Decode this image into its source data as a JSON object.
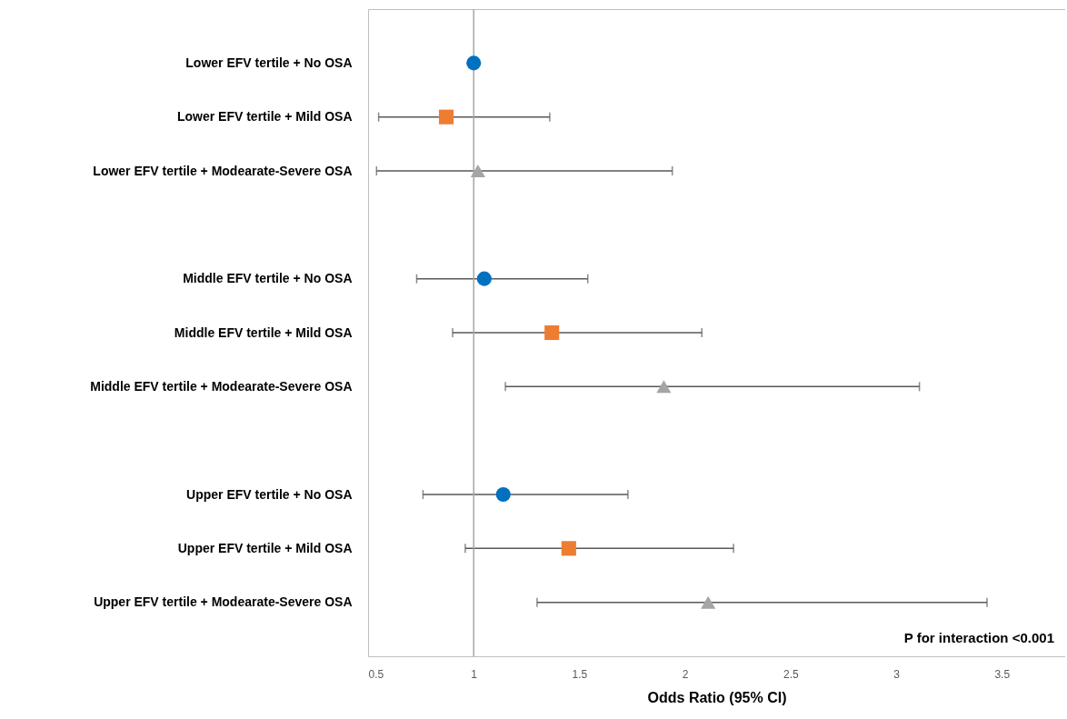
{
  "chart_data": {
    "type": "scatter",
    "orientation": "horizontal",
    "xlabel": "Odds Ratio (95% CI)",
    "categories": [
      "Lower EFV tertile + No OSA",
      "Lower EFV tertile + Mild OSA",
      "Lower EFV tertile + Modearate-Severe OSA",
      null,
      "Middle EFV tertile + No OSA",
      "Middle EFV tertile + Mild OSA",
      "Middle EFV tertile + Modearate-Severe OSA",
      null,
      "Upper EFV tertile + No OSA",
      "Upper EFV tertile + Mild OSA",
      "Upper EFV tertile + Modearate-Severe OSA"
    ],
    "series": [
      {
        "color": "#0070c0",
        "marker": "circle",
        "values": [
          1.0,
          null,
          null,
          null,
          1.05,
          null,
          null,
          null,
          1.14,
          null,
          null
        ],
        "errors": [
          null,
          null,
          null,
          null,
          [
            0.73,
            1.54
          ],
          null,
          null,
          null,
          [
            0.76,
            1.73
          ],
          null,
          null
        ]
      },
      {
        "color": "#ed7d31",
        "marker": "square",
        "values": [
          null,
          0.87,
          null,
          null,
          null,
          1.37,
          null,
          null,
          null,
          1.45,
          null
        ],
        "errors": [
          null,
          [
            0.55,
            1.36
          ],
          null,
          null,
          null,
          [
            0.9,
            2.08
          ],
          null,
          null,
          null,
          [
            0.96,
            2.23
          ],
          null
        ]
      },
      {
        "color": "#a5a5a5",
        "marker": "triangle",
        "values": [
          null,
          null,
          1.02,
          null,
          null,
          null,
          1.9,
          null,
          null,
          null,
          2.11
        ],
        "errors": [
          null,
          null,
          [
            0.54,
            1.94
          ],
          null,
          null,
          null,
          [
            1.15,
            3.11
          ],
          null,
          null,
          null,
          [
            1.3,
            3.43
          ]
        ]
      }
    ],
    "xlim": [
      0.5,
      3.8
    ],
    "xticks": [
      0.5,
      1,
      1.5,
      2,
      2.5,
      3,
      3.5
    ],
    "grid": false,
    "legend": false,
    "ref_lines": [
      {
        "axis": "x",
        "value": 1,
        "color": "#a6a6a6"
      }
    ],
    "annotations": [
      "P for interaction <0.001"
    ]
  }
}
